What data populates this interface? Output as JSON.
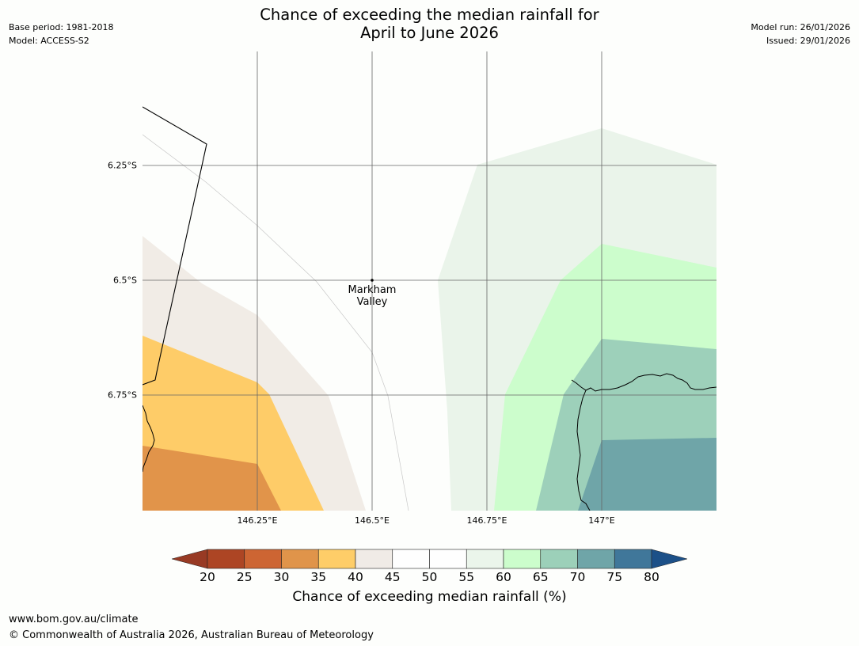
{
  "header": {
    "title_line1": "Chance of exceeding the median rainfall for",
    "title_line2": "April to June 2026",
    "base_period": "Base period: 1981-2018",
    "model": "Model: ACCESS-S2",
    "model_run": "Model run: 26/01/2026",
    "issued": "Issued: 29/01/2026"
  },
  "map": {
    "lat_labels": [
      "6.25°S",
      "6.5°S",
      "6.75°S"
    ],
    "lon_labels": [
      "146.25°E",
      "146.5°E",
      "146.75°E",
      "147°E"
    ],
    "place": {
      "name_line1": "Markham",
      "name_line2": "Valley"
    }
  },
  "colorbar": {
    "title": "Chance of exceeding median rainfall (%)",
    "ticks": [
      "20",
      "25",
      "30",
      "35",
      "40",
      "45",
      "50",
      "55",
      "60",
      "65",
      "70",
      "75",
      "80"
    ],
    "colors": [
      "#ad4524",
      "#cd6533",
      "#e0944a",
      "#fecd68",
      "#f0ebe6",
      "#fefefe",
      "#fefefe",
      "#ebf5eb",
      "#ccfdcc",
      "#9cd0b9",
      "#6fa5a8",
      "#40779a"
    ],
    "under_color": "#983a24",
    "over_color": "#1c5088"
  },
  "footer": {
    "url": "www.bom.gov.au/climate",
    "copyright": "© Commonwealth of Australia 2026, Australian Bureau of Meteorology"
  }
}
